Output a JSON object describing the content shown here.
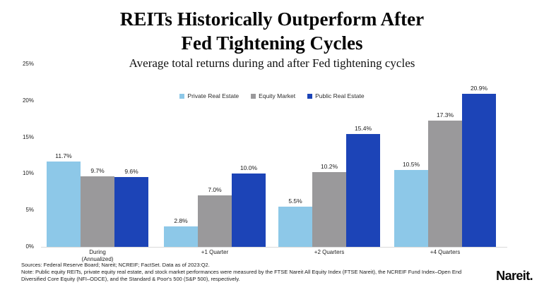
{
  "header": {
    "title": "REITs Historically Outperform After\nFed Tightening Cycles",
    "subtitle": "Average total returns during and after Fed tightening cycles"
  },
  "chart_data": {
    "type": "bar",
    "title": "REITs Historically Outperform After Fed Tightening Cycles",
    "subtitle": "Average total returns during and after Fed tightening cycles",
    "categories": [
      "During\n(Annualized)",
      "+1 Quarter",
      "+2 Quarters",
      "+4 Quarters"
    ],
    "series": [
      {
        "name": "Private Real Estate",
        "color": "#8DC8E8",
        "values": [
          11.7,
          2.8,
          5.5,
          10.5
        ],
        "labels": [
          "11.7%",
          "2.8%",
          "5.5%",
          "10.5%"
        ]
      },
      {
        "name": "Equity Market",
        "color": "#9A999B",
        "values": [
          9.7,
          7.0,
          10.2,
          17.3
        ],
        "labels": [
          "9.7%",
          "7.0%",
          "10.2%",
          "17.3%"
        ]
      },
      {
        "name": "Public Real Estate",
        "color": "#1C44B7",
        "values": [
          9.6,
          10.0,
          15.4,
          20.9
        ],
        "labels": [
          "9.6%",
          "10.0%",
          "15.4%",
          "20.9%"
        ]
      }
    ],
    "xlabel": "",
    "ylabel": "",
    "ylim": [
      0,
      25
    ],
    "yticks": [
      "0%",
      "5%",
      "10%",
      "15%",
      "20%",
      "25%"
    ],
    "ytick_step": 5,
    "grid": false,
    "legend_position": "top-center"
  },
  "footer": {
    "sources": "Sources: Federal Reserve Board; Nareit; NCREIF; FactSet. Data as of 2023:Q2.",
    "note": "Note: Public equity REITs, private equity real estate, and stock market performances were measured by the FTSE Nareit All Equity Index (FTSE Nareit), the NCREIF Fund Index–Open End Diversified Core Equity (NFI–ODCE), and the Standard & Poor's 500 (S&P 500), respectively.",
    "logo": "Nareit."
  }
}
